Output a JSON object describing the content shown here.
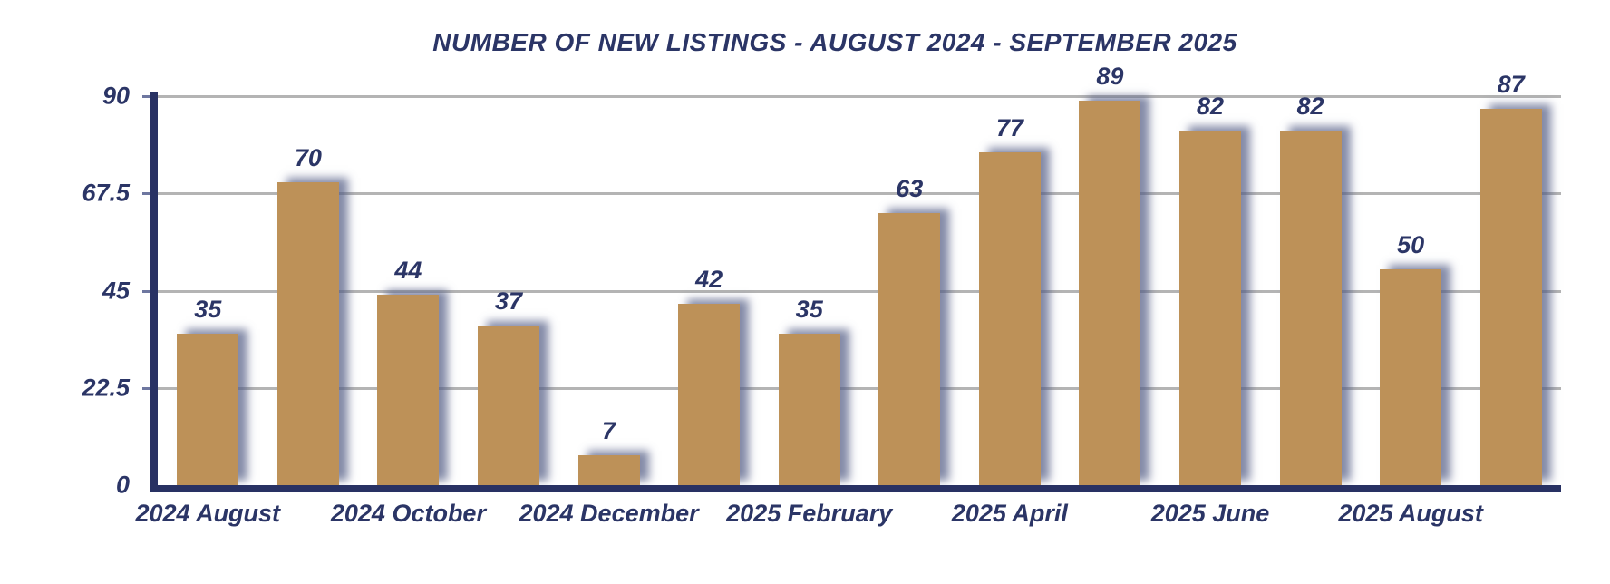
{
  "chart_data": {
    "type": "bar",
    "title": "NUMBER OF NEW LISTINGS - AUGUST 2024 - SEPTEMBER 2025",
    "values": [
      35,
      70,
      44,
      37,
      7,
      42,
      35,
      63,
      77,
      89,
      82,
      82,
      50,
      87
    ],
    "x_tick_labels": [
      "2024 August",
      "2024 October",
      "2024 December",
      "2025 February",
      "2025 April",
      "2025 June",
      "2025 August"
    ],
    "x_tick_every": 2,
    "y_ticks": [
      "0",
      "22.5",
      "45",
      "67.5",
      "90"
    ],
    "ylim": [
      0,
      90
    ],
    "grid": true,
    "legend_position": "none",
    "colors": {
      "bar": "#bd9158",
      "text": "#2b3566",
      "axis": "#283163",
      "gridline": "#b4b4b4",
      "background": "#ffffff"
    }
  }
}
